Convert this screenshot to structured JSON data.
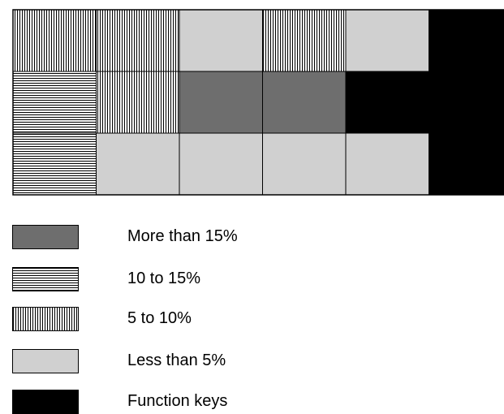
{
  "colors": {
    "more_than_15": "#6e6e6e",
    "ten_to_15": "#000000",
    "five_to_10": "#000000",
    "less_than_5": "#d0d0d0",
    "function_keys": "#000000"
  },
  "grid": {
    "rows": [
      [
        "five_to_10",
        "five_to_10",
        "less_than_5",
        "five_to_10",
        "less_than_5",
        "function_keys"
      ],
      [
        "ten_to_15",
        "five_to_10",
        "more_than_15",
        "more_than_15",
        "function_keys",
        "function_keys"
      ],
      [
        "ten_to_15",
        "less_than_5",
        "less_than_5",
        "less_than_5",
        "less_than_5",
        "function_keys"
      ]
    ]
  },
  "legend": [
    {
      "key": "more_than_15",
      "label": "More than 15%"
    },
    {
      "key": "ten_to_15",
      "label": "10 to 15%"
    },
    {
      "key": "five_to_10",
      "label": "5 to 10%"
    },
    {
      "key": "less_than_5",
      "label": "Less than 5%"
    },
    {
      "key": "function_keys",
      "label": "Function keys"
    }
  ]
}
